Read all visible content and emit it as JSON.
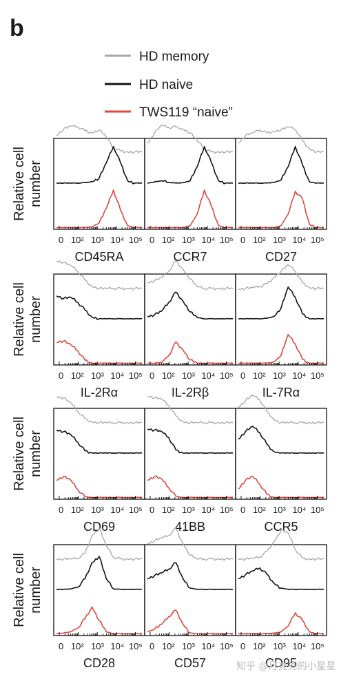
{
  "panel_label": "b",
  "legend": [
    {
      "label": "HD memory",
      "color": "#a6a6a6"
    },
    {
      "label": "HD naive",
      "color": "#111111"
    },
    {
      "label": "TWS119 “naive”",
      "color": "#e0463c"
    }
  ],
  "y_axis_label": "Relative cell number",
  "tick_labels": [
    "0",
    "10²",
    "10³",
    "10⁴",
    "10⁵"
  ],
  "watermark": "知乎 @月亮亮的小星星",
  "chart_data": {
    "type": "histogram-overlay",
    "x_scale": "log",
    "x_ticks": [
      "0",
      "10^2",
      "10^3",
      "10^4",
      "10^5"
    ],
    "series_names": [
      "HD memory",
      "HD naive",
      "TWS119 “naive”"
    ],
    "markers": [
      {
        "name": "CD45RA",
        "row": 0,
        "col": 0,
        "memory": [
          0.55,
          0.72,
          0.8,
          0.78,
          0.68,
          0.62,
          0.7,
          0.52,
          0.22,
          0.15,
          0.12,
          0.12,
          0.12
        ],
        "naive": [
          0.02,
          0.02,
          0.02,
          0.02,
          0.03,
          0.06,
          0.15,
          0.55,
          0.98,
          0.55,
          0.08,
          0.02,
          0.02
        ],
        "tws": [
          0.0,
          0.0,
          0.0,
          0.0,
          0.0,
          0.02,
          0.12,
          0.5,
          0.98,
          0.45,
          0.05,
          0.0,
          0.0
        ]
      },
      {
        "name": "CCR7",
        "row": 0,
        "col": 1,
        "memory": [
          0.35,
          0.62,
          0.82,
          0.76,
          0.78,
          0.72,
          0.62,
          0.42,
          0.2,
          0.12,
          0.12,
          0.12,
          0.12
        ],
        "naive": [
          0.02,
          0.05,
          0.08,
          0.04,
          0.02,
          0.03,
          0.08,
          0.45,
          0.98,
          0.55,
          0.08,
          0.02,
          0.02
        ],
        "tws": [
          0.0,
          0.0,
          0.0,
          0.0,
          0.0,
          0.0,
          0.05,
          0.35,
          0.98,
          0.55,
          0.05,
          0.0,
          0.0
        ]
      },
      {
        "name": "CD27",
        "row": 0,
        "col": 2,
        "memory": [
          0.35,
          0.55,
          0.62,
          0.7,
          0.62,
          0.66,
          0.7,
          0.78,
          0.72,
          0.42,
          0.2,
          0.12,
          0.12
        ],
        "naive": [
          0.02,
          0.02,
          0.02,
          0.02,
          0.02,
          0.04,
          0.1,
          0.45,
          0.98,
          0.5,
          0.05,
          0.02,
          0.02
        ],
        "tws": [
          0.0,
          0.0,
          0.0,
          0.0,
          0.0,
          0.0,
          0.05,
          0.35,
          0.95,
          0.75,
          0.08,
          0.0,
          0.0
        ]
      },
      {
        "name": "IL-2Rα",
        "row": 1,
        "col": 0,
        "memory": [
          0.82,
          0.78,
          0.7,
          0.55,
          0.32,
          0.15,
          0.1,
          0.1,
          0.1,
          0.1,
          0.1,
          0.1,
          0.1
        ],
        "naive": [
          0.62,
          0.55,
          0.58,
          0.45,
          0.25,
          0.06,
          0.02,
          0.02,
          0.02,
          0.02,
          0.02,
          0.02,
          0.02
        ],
        "tws": [
          0.55,
          0.58,
          0.48,
          0.32,
          0.08,
          0.0,
          0.0,
          0.0,
          0.0,
          0.0,
          0.0,
          0.0,
          0.0
        ]
      },
      {
        "name": "IL-2Rβ",
        "row": 1,
        "col": 1,
        "memory": [
          0.25,
          0.3,
          0.38,
          0.55,
          0.82,
          0.6,
          0.35,
          0.15,
          0.1,
          0.1,
          0.1,
          0.1,
          0.1
        ],
        "naive": [
          0.08,
          0.12,
          0.22,
          0.45,
          0.72,
          0.48,
          0.2,
          0.05,
          0.02,
          0.02,
          0.02,
          0.02,
          0.02
        ],
        "tws": [
          0.0,
          0.0,
          0.02,
          0.2,
          0.55,
          0.35,
          0.08,
          0.0,
          0.0,
          0.0,
          0.0,
          0.0,
          0.0
        ]
      },
      {
        "name": "IL-7Rα",
        "row": 1,
        "col": 2,
        "memory": [
          0.08,
          0.1,
          0.12,
          0.15,
          0.22,
          0.38,
          0.55,
          0.72,
          0.55,
          0.25,
          0.12,
          0.1,
          0.1
        ],
        "naive": [
          0.02,
          0.02,
          0.02,
          0.02,
          0.03,
          0.08,
          0.3,
          0.85,
          0.58,
          0.15,
          0.02,
          0.02,
          0.02
        ],
        "tws": [
          0.0,
          0.0,
          0.0,
          0.0,
          0.0,
          0.03,
          0.2,
          0.75,
          0.5,
          0.1,
          0.0,
          0.0,
          0.0
        ]
      },
      {
        "name": "CD69",
        "row": 2,
        "col": 0,
        "memory": [
          0.78,
          0.75,
          0.62,
          0.4,
          0.2,
          0.12,
          0.1,
          0.1,
          0.1,
          0.1,
          0.1,
          0.1,
          0.1
        ],
        "naive": [
          0.62,
          0.58,
          0.5,
          0.3,
          0.08,
          0.02,
          0.02,
          0.02,
          0.02,
          0.02,
          0.02,
          0.02,
          0.02
        ],
        "tws": [
          0.45,
          0.55,
          0.45,
          0.2,
          0.02,
          0.0,
          0.0,
          0.0,
          0.0,
          0.0,
          0.0,
          0.0,
          0.0
        ]
      },
      {
        "name": "41BB",
        "row": 2,
        "col": 1,
        "memory": [
          0.8,
          0.75,
          0.72,
          0.55,
          0.28,
          0.12,
          0.1,
          0.1,
          0.1,
          0.1,
          0.1,
          0.1,
          0.1
        ],
        "naive": [
          0.65,
          0.62,
          0.58,
          0.42,
          0.1,
          0.02,
          0.02,
          0.02,
          0.02,
          0.02,
          0.02,
          0.02,
          0.02
        ],
        "tws": [
          0.45,
          0.55,
          0.48,
          0.25,
          0.03,
          0.0,
          0.0,
          0.0,
          0.0,
          0.0,
          0.0,
          0.0,
          0.0
        ]
      },
      {
        "name": "CCR5",
        "row": 2,
        "col": 2,
        "memory": [
          0.5,
          0.68,
          0.82,
          0.7,
          0.4,
          0.18,
          0.1,
          0.1,
          0.1,
          0.1,
          0.1,
          0.1,
          0.1
        ],
        "naive": [
          0.38,
          0.58,
          0.72,
          0.55,
          0.25,
          0.05,
          0.02,
          0.02,
          0.02,
          0.02,
          0.02,
          0.02,
          0.02
        ],
        "tws": [
          0.22,
          0.45,
          0.55,
          0.35,
          0.08,
          0.0,
          0.0,
          0.0,
          0.0,
          0.0,
          0.0,
          0.0,
          0.0
        ]
      },
      {
        "name": "CD28",
        "row": 3,
        "col": 0,
        "memory": [
          0.1,
          0.1,
          0.1,
          0.12,
          0.25,
          0.72,
          0.9,
          0.45,
          0.15,
          0.1,
          0.1,
          0.1,
          0.1
        ],
        "naive": [
          0.02,
          0.02,
          0.03,
          0.08,
          0.3,
          0.72,
          0.88,
          0.3,
          0.03,
          0.02,
          0.02,
          0.02,
          0.02
        ],
        "tws": [
          0.0,
          0.02,
          0.05,
          0.15,
          0.4,
          0.7,
          0.35,
          0.05,
          0.0,
          0.0,
          0.0,
          0.0,
          0.0
        ]
      },
      {
        "name": "CD57",
        "row": 3,
        "col": 1,
        "memory": [
          0.5,
          0.58,
          0.65,
          0.72,
          0.9,
          0.5,
          0.2,
          0.1,
          0.1,
          0.1,
          0.1,
          0.1,
          0.1
        ],
        "naive": [
          0.3,
          0.38,
          0.45,
          0.55,
          0.72,
          0.3,
          0.05,
          0.02,
          0.02,
          0.02,
          0.02,
          0.02,
          0.02
        ],
        "tws": [
          0.05,
          0.12,
          0.25,
          0.45,
          0.62,
          0.25,
          0.02,
          0.0,
          0.0,
          0.0,
          0.0,
          0.0,
          0.0
        ]
      },
      {
        "name": "CD95",
        "row": 3,
        "col": 2,
        "memory": [
          0.1,
          0.1,
          0.12,
          0.15,
          0.3,
          0.55,
          0.85,
          0.78,
          0.35,
          0.12,
          0.1,
          0.1,
          0.1
        ],
        "naive": [
          0.3,
          0.4,
          0.5,
          0.58,
          0.42,
          0.18,
          0.05,
          0.02,
          0.02,
          0.02,
          0.02,
          0.02,
          0.02
        ],
        "tws": [
          0.0,
          0.0,
          0.0,
          0.0,
          0.0,
          0.02,
          0.05,
          0.2,
          0.55,
          0.35,
          0.05,
          0.0,
          0.0
        ]
      }
    ]
  }
}
